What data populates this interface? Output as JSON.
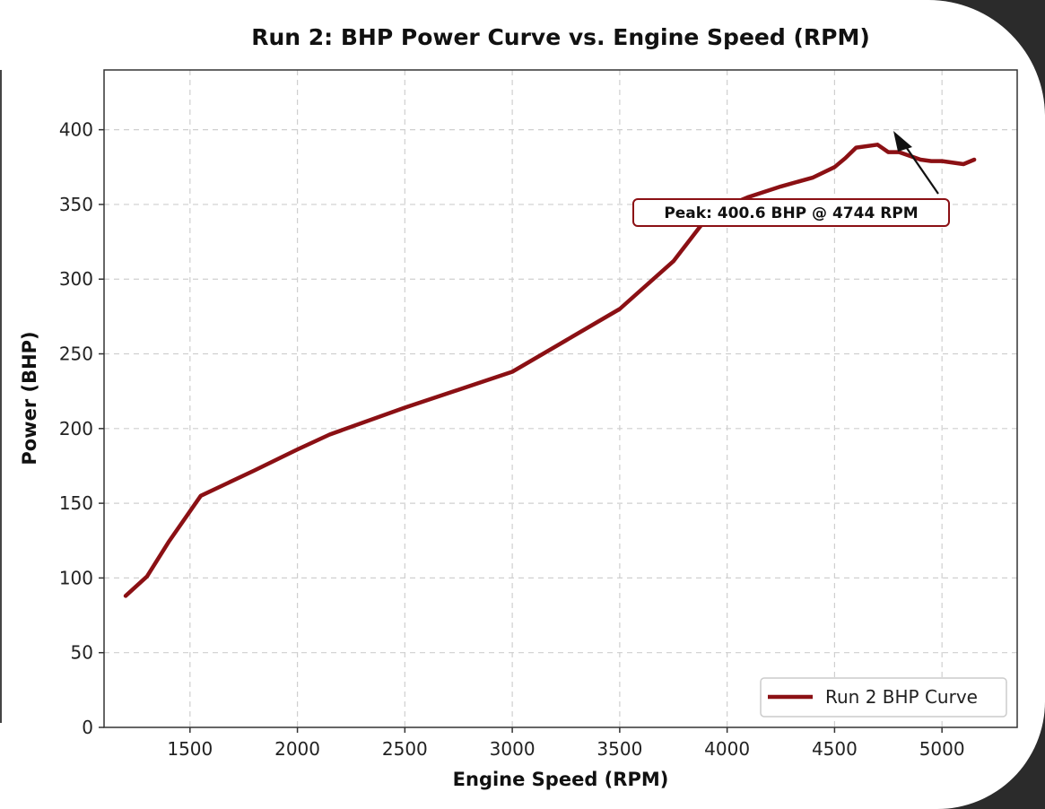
{
  "chart_data": {
    "type": "line",
    "title": "Run 2: BHP Power Curve vs. Engine Speed (RPM)",
    "xlabel": "Engine Speed (RPM)",
    "ylabel": "Power (BHP)",
    "xlim": [
      1100,
      5350
    ],
    "ylim": [
      0,
      440
    ],
    "x_ticks": [
      1500,
      2000,
      2500,
      3000,
      3500,
      4000,
      4500,
      5000
    ],
    "y_ticks": [
      0,
      50,
      100,
      150,
      200,
      250,
      300,
      350,
      400
    ],
    "grid": true,
    "legend_position": "bottom-right",
    "series": [
      {
        "name": "Run 2 BHP Curve",
        "color": "#8b1014",
        "x": [
          1200,
          1300,
          1400,
          1550,
          1800,
          2000,
          2150,
          2500,
          3000,
          3250,
          3500,
          3750,
          3900,
          4000,
          4100,
          4250,
          4400,
          4500,
          4550,
          4600,
          4700,
          4750,
          4800,
          4900,
          4950,
          5000,
          5100,
          5150
        ],
        "values": [
          88,
          101,
          124,
          155,
          172,
          186,
          196,
          214,
          238,
          259,
          280,
          312,
          340,
          349,
          355,
          362,
          368,
          375,
          381,
          388,
          390,
          385,
          385,
          380,
          379,
          379,
          377,
          380
        ]
      }
    ],
    "annotation": {
      "text": "Peak: 400.6 BHP @ 4744 RPM",
      "peak_x": 4744,
      "peak_y": 400.6,
      "border_color": "#8b1014"
    }
  }
}
